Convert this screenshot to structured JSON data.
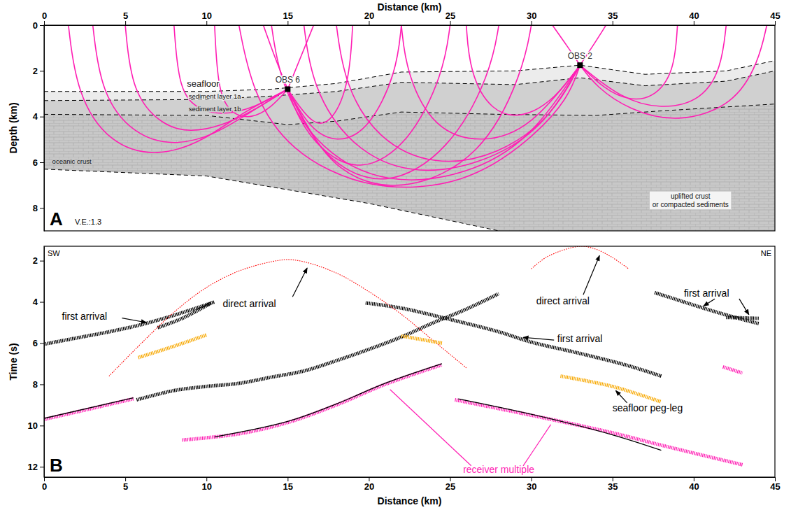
{
  "chart_data": [
    {
      "type": "raytrace",
      "panel": "A",
      "x_label": "Distance (km)",
      "y_label": "Depth (km)",
      "ve_label": "V.E.:1.3",
      "xlim": [
        0,
        45
      ],
      "xticks": [
        0,
        5,
        10,
        15,
        20,
        25,
        30,
        35,
        40,
        45
      ],
      "ylim": [
        0,
        9
      ],
      "yticks": [
        0,
        2,
        4,
        6,
        8
      ],
      "color": "#ff1fb4",
      "boundaries": [
        {
          "x": [
            0,
            10,
            14,
            18,
            22,
            29,
            33,
            37,
            42,
            45
          ],
          "y": [
            2.9,
            2.9,
            2.8,
            2.55,
            2.05,
            2.0,
            1.75,
            2.15,
            2.0,
            1.55
          ]
        },
        {
          "x": [
            0,
            10,
            14,
            18,
            22,
            29,
            33,
            37,
            42,
            45
          ],
          "y": [
            3.3,
            3.25,
            3.1,
            2.9,
            2.5,
            2.6,
            2.3,
            2.65,
            2.45,
            2.0
          ]
        },
        {
          "x": [
            0,
            10,
            15,
            18,
            22,
            28,
            34,
            38,
            45
          ],
          "y": [
            3.9,
            3.95,
            4.35,
            4.2,
            3.8,
            3.9,
            3.95,
            3.75,
            3.45
          ]
        },
        {
          "x": [
            0,
            10,
            20,
            28
          ],
          "y": [
            6.3,
            6.6,
            7.8,
            9.0
          ]
        }
      ],
      "labels": [
        "seafloor",
        "sediment layer 1a",
        "sediment layer 1b",
        "oceanic crust",
        "uplifted crust",
        "or compacted sediments"
      ],
      "stations": [
        {
          "name": "OBS 6",
          "x": 15,
          "y": 2.8
        },
        {
          "name": "OBS 2",
          "x": 33,
          "y": 1.75
        }
      ],
      "rays": [
        {
          "x": [
            1.5,
            2,
            4,
            7,
            10,
            12,
            15
          ],
          "y": [
            0,
            3,
            5.2,
            5.8,
            5.0,
            3.9,
            2.8
          ]
        },
        {
          "x": [
            3,
            3.5,
            5.5,
            8,
            10.5,
            12.5,
            15
          ],
          "y": [
            0,
            3,
            4.8,
            5.3,
            4.8,
            3.9,
            2.8
          ]
        },
        {
          "x": [
            5,
            5.4,
            7.3,
            9,
            11,
            13,
            15
          ],
          "y": [
            0,
            3,
            4.4,
            4.7,
            4.4,
            3.7,
            2.8
          ]
        },
        {
          "x": [
            8,
            8.3,
            9.5,
            11,
            13,
            15
          ],
          "y": [
            0,
            2.9,
            3.7,
            3.95,
            3.6,
            2.8
          ]
        },
        {
          "x": [
            10.5,
            10.7,
            11.5,
            12.8,
            14,
            15
          ],
          "y": [
            0,
            2.9,
            3.9,
            4.1,
            3.6,
            2.8
          ]
        },
        {
          "x": [
            15,
            14.2,
            13.5
          ],
          "y": [
            2.8,
            1.4,
            0
          ]
        },
        {
          "x": [
            15,
            15.8,
            16.6
          ],
          "y": [
            2.8,
            1.4,
            0
          ]
        },
        {
          "x": [
            30,
            29.5,
            27,
            22,
            18,
            16,
            15
          ],
          "y": [
            0,
            2.0,
            5.8,
            7.4,
            6.5,
            4.2,
            2.8
          ]
        },
        {
          "x": [
            28,
            27.5,
            25,
            21,
            17.5,
            15.8,
            15
          ],
          "y": [
            0,
            2.1,
            5.5,
            7.2,
            6,
            4,
            2.8
          ]
        },
        {
          "x": [
            25,
            24.6,
            22.5,
            19.5,
            17,
            15.6,
            15
          ],
          "y": [
            0,
            2.1,
            5.2,
            6.5,
            5.5,
            4,
            2.8
          ]
        },
        {
          "x": [
            22,
            21.7,
            20,
            18,
            16.3,
            15
          ],
          "y": [
            0,
            2.1,
            4.6,
            5.2,
            4.5,
            2.8
          ]
        },
        {
          "x": [
            19,
            18.8,
            17.8,
            16.6,
            15
          ],
          "y": [
            0,
            2.5,
            4.2,
            4.5,
            2.8
          ]
        },
        {
          "x": [
            12,
            12.8,
            15,
            20,
            26,
            30,
            32.3,
            33
          ],
          "y": [
            0,
            2.9,
            5.5,
            7.3,
            7,
            5,
            3.2,
            1.75
          ]
        },
        {
          "x": [
            14,
            14.6,
            17,
            21,
            26,
            30,
            33
          ],
          "y": [
            0,
            2.8,
            5.5,
            7,
            6.6,
            5,
            1.75
          ]
        },
        {
          "x": [
            16,
            16.5,
            18.8,
            22.5,
            27,
            30.8,
            33
          ],
          "y": [
            0,
            2.7,
            5.3,
            6.6,
            6.1,
            4.5,
            1.75
          ]
        },
        {
          "x": [
            18,
            18.5,
            20.5,
            24,
            28,
            31.3,
            33
          ],
          "y": [
            0,
            2.6,
            5,
            6.2,
            5.7,
            4,
            1.75
          ]
        },
        {
          "x": [
            22,
            22.3,
            24,
            27,
            30,
            33
          ],
          "y": [
            0,
            2.1,
            4.6,
            5.2,
            4.5,
            1.75
          ]
        },
        {
          "x": [
            26,
            26.2,
            27.5,
            29.5,
            31.5,
            33
          ],
          "y": [
            0,
            2.05,
            3.8,
            4.1,
            3.2,
            1.75
          ]
        },
        {
          "x": [
            33,
            32.2,
            31.3
          ],
          "y": [
            1.75,
            0.9,
            0
          ]
        },
        {
          "x": [
            33,
            33.8,
            34.6
          ],
          "y": [
            1.75,
            0.9,
            0
          ]
        },
        {
          "x": [
            44.5,
            44,
            42.5,
            39,
            36,
            34,
            33
          ],
          "y": [
            0,
            1.6,
            3.5,
            4.3,
            3.7,
            2.7,
            1.75
          ]
        },
        {
          "x": [
            42,
            41.7,
            40.5,
            38,
            35.5,
            33
          ],
          "y": [
            0,
            1.9,
            3.3,
            3.7,
            3.2,
            1.75
          ]
        },
        {
          "x": [
            39,
            38.8,
            37.5,
            36,
            34.5,
            33
          ],
          "y": [
            0,
            2.1,
            3.2,
            3.3,
            2.8,
            1.75
          ]
        }
      ]
    },
    {
      "type": "line",
      "panel": "B",
      "x_label": "Distance (km)",
      "y_label": "Time (s)",
      "xlim": [
        0,
        45
      ],
      "xticks": [
        0,
        5,
        10,
        15,
        20,
        25,
        30,
        35,
        40,
        45
      ],
      "ylim": [
        1.3,
        12.5
      ],
      "yticks": [
        2,
        4,
        6,
        8,
        10,
        12
      ],
      "corner_labels": [
        "SW",
        "NE"
      ],
      "annotations": [
        {
          "text": "first arrival",
          "color": "#000000"
        },
        {
          "text": "direct arrival",
          "color": "#000000"
        },
        {
          "text": "direct arrival",
          "color": "#000000"
        },
        {
          "text": "first arrival",
          "color": "#000000"
        },
        {
          "text": "first arrival",
          "color": "#000000"
        },
        {
          "text": "seafloor peg-leg",
          "color": "#000000"
        },
        {
          "text": "receiver multiple",
          "color": "#ff1fb4"
        }
      ],
      "series": [
        {
          "color": "#000000",
          "line_style": "picks",
          "segments": [
            {
              "x": [
                0,
                2,
                4,
                6,
                8,
                10.5
              ],
              "y": [
                6.05,
                5.75,
                5.45,
                5.1,
                4.65,
                4.0
              ]
            },
            {
              "x": [
                7,
                8.5,
                10.3
              ],
              "y": [
                5.25,
                4.8,
                4.05
              ]
            },
            {
              "x": [
                5.7,
                8,
                10,
                12,
                14,
                16,
                18,
                20,
                22,
                24,
                26,
                28
              ],
              "y": [
                8.75,
                8.3,
                8.1,
                7.95,
                7.65,
                7.35,
                6.85,
                6.3,
                5.7,
                5.0,
                4.35,
                3.6
              ]
            },
            {
              "x": [
                19.8,
                22,
                25,
                28,
                30,
                33,
                36,
                38
              ],
              "y": [
                4.05,
                4.3,
                4.85,
                5.45,
                5.95,
                6.5,
                7.1,
                7.6
              ]
            },
            {
              "x": [
                37.6,
                39,
                41,
                43,
                44
              ],
              "y": [
                3.55,
                3.9,
                4.4,
                4.85,
                5.05
              ]
            },
            {
              "x": [
                42,
                44
              ],
              "y": [
                4.75,
                4.8
              ]
            }
          ]
        },
        {
          "color": "#ff0000",
          "line_style": "dotted",
          "segments": [
            {
              "x": [
                4,
                6,
                8,
                10,
                12,
                14,
                15,
                16,
                18,
                20,
                22,
                24,
                26
              ],
              "y": [
                7.6,
                6.0,
                4.5,
                3.3,
                2.5,
                2.05,
                1.95,
                2.05,
                2.6,
                3.5,
                4.6,
                5.9,
                7.2
              ]
            },
            {
              "x": [
                30,
                31,
                33,
                34,
                35,
                36
              ],
              "y": [
                2.4,
                1.8,
                1.3,
                1.45,
                1.85,
                2.4
              ]
            }
          ]
        },
        {
          "color": "#f7a800",
          "line_style": "picks",
          "segments": [
            {
              "x": [
                5.8,
                8,
                10
              ],
              "y": [
                6.7,
                6.15,
                5.6
              ]
            },
            {
              "x": [
                22,
                24.5
              ],
              "y": [
                5.65,
                6.0
              ]
            },
            {
              "x": [
                31.8,
                35,
                38
              ],
              "y": [
                7.6,
                8.1,
                8.85
              ]
            }
          ]
        },
        {
          "color": "#ff1fb4",
          "line_style": "picks",
          "segments": [
            {
              "x": [
                0,
                2.5,
                5.5
              ],
              "y": [
                9.7,
                9.25,
                8.7
              ]
            },
            {
              "x": [
                8.5,
                12,
                15,
                18,
                21,
                24.5
              ],
              "y": [
                10.7,
                10.4,
                9.85,
                9.0,
                8.0,
                7.05
              ]
            },
            {
              "x": [
                25.3,
                30,
                35,
                38,
                43
              ],
              "y": [
                8.75,
                9.5,
                10.35,
                10.95,
                11.9
              ]
            },
            {
              "x": [
                41.8,
                43
              ],
              "y": [
                7.15,
                7.45
              ]
            }
          ]
        },
        {
          "color": "#000000",
          "line_style": "solid",
          "segments": [
            {
              "x": [
                0,
                5.5
              ],
              "y": [
                9.65,
                8.65
              ]
            },
            {
              "x": [
                10.5,
                15,
                18,
                21,
                24.5
              ],
              "y": [
                10.55,
                9.8,
                8.95,
                7.95,
                7.0
              ]
            },
            {
              "x": [
                25.5,
                30,
                35,
                38
              ],
              "y": [
                8.7,
                9.45,
                10.45,
                11.2
              ]
            }
          ]
        }
      ]
    }
  ]
}
